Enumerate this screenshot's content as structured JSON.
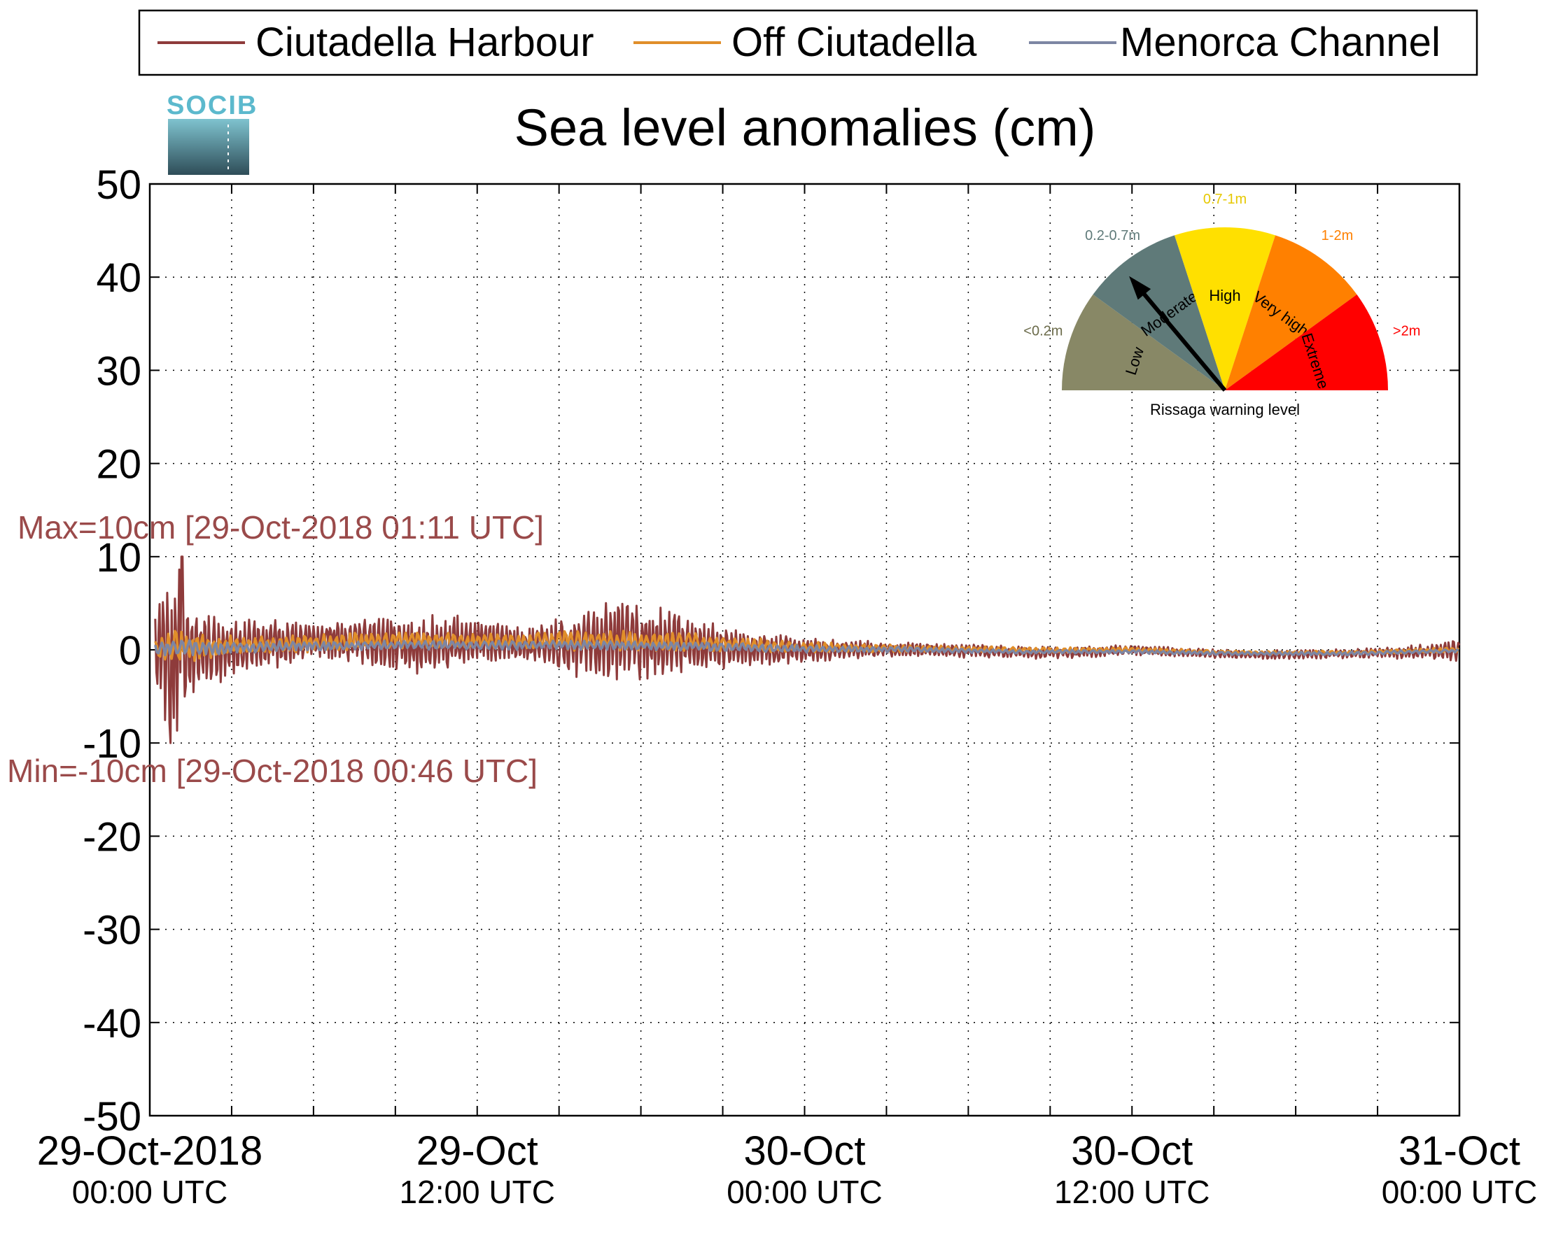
{
  "chart_data": {
    "type": "line",
    "title": "Sea level anomalies (cm)",
    "logo_text": "SOCIB",
    "xlabel": "",
    "ylabel": "",
    "ylim": [
      -50,
      50
    ],
    "yticks": [
      50,
      40,
      30,
      20,
      10,
      0,
      -10,
      -20,
      -30,
      -40,
      -50
    ],
    "xlim": [
      "2018-10-29T00:00Z",
      "2018-10-31T00:00Z"
    ],
    "xticks": [
      {
        "date": "29-Oct-2018",
        "time": "00:00 UTC"
      },
      {
        "date": "29-Oct",
        "time": "12:00 UTC"
      },
      {
        "date": "30-Oct",
        "time": "00:00 UTC"
      },
      {
        "date": "30-Oct",
        "time": "12:00 UTC"
      },
      {
        "date": "31-Oct",
        "time": "00:00 UTC"
      }
    ],
    "grid": true,
    "legend_placement": "top",
    "series": [
      {
        "name": "Ciutadella Harbour",
        "color": "#8e3b3b",
        "time_hours": [
          0,
          0.5,
          1.0,
          1.5,
          2,
          3,
          4,
          6,
          8,
          10,
          12,
          14,
          16,
          17,
          18,
          19,
          20,
          21,
          22,
          24,
          26,
          28,
          30,
          32,
          34,
          36,
          38,
          40,
          42,
          44,
          46,
          48
        ],
        "amplitude_cm": [
          3,
          8,
          10,
          6,
          4,
          3.5,
          3,
          2,
          3,
          3.5,
          2.5,
          2,
          4,
          5,
          4.5,
          4,
          3,
          2.5,
          2,
          1.5,
          1,
          0.8,
          0.8,
          0.7,
          0.6,
          0.6,
          0.5,
          0.5,
          0.5,
          0.5,
          0.7,
          1.2
        ],
        "baseline_cm": [
          0,
          0,
          0,
          0,
          0,
          0,
          0.5,
          1,
          1,
          0.5,
          1,
          0.5,
          0.5,
          1,
          1,
          0.8,
          0.5,
          0.3,
          0.1,
          0,
          0,
          0,
          -0.1,
          -0.3,
          -0.3,
          0,
          -0.3,
          -0.5,
          -0.5,
          -0.4,
          -0.3,
          0
        ]
      },
      {
        "name": "Off Ciutadella",
        "color": "#e08e2a",
        "time_hours": [
          0,
          1,
          2,
          4,
          8,
          12,
          16,
          20,
          24,
          28,
          32,
          36,
          40,
          44,
          48
        ],
        "amplitude_cm": [
          1,
          2,
          1.5,
          1,
          1,
          0.8,
          1.2,
          1,
          0.6,
          0.4,
          0.3,
          0.3,
          0.2,
          0.2,
          0.3
        ],
        "baseline_cm": [
          0,
          0.5,
          0.3,
          0.5,
          1,
          1,
          1,
          0.8,
          0.3,
          0.1,
          0,
          0,
          -0.3,
          -0.3,
          0
        ]
      },
      {
        "name": "Menorca Channel",
        "color": "#7d86a3",
        "time_hours": [
          0,
          1,
          2,
          4,
          8,
          12,
          16,
          20,
          24,
          28,
          32,
          36,
          40,
          44,
          48
        ],
        "amplitude_cm": [
          0.5,
          1,
          0.8,
          0.6,
          0.5,
          0.5,
          0.5,
          0.5,
          0.4,
          0.3,
          0.2,
          0.2,
          0.2,
          0.2,
          0.2
        ],
        "baseline_cm": [
          0,
          0.3,
          0.2,
          0.3,
          0.5,
          0.5,
          0.5,
          0.4,
          0.1,
          0,
          -0.2,
          -0.2,
          -0.4,
          -0.4,
          -0.1
        ]
      }
    ],
    "annotations": {
      "max_label": "Max=10cm [29-Oct-2018 01:11 UTC]",
      "min_label": "Min=-10cm [29-Oct-2018 00:46 UTC]",
      "max_value_cm": 10,
      "max_time_hours": 1.18,
      "min_value_cm": -10,
      "min_time_hours": 0.77
    },
    "gauge": {
      "caption": "Rissaga warning level",
      "needle_segment": "Moderate",
      "segments": [
        {
          "name": "Low",
          "range": "<0.2m",
          "color": "#888866"
        },
        {
          "name": "Moderate",
          "range": "0.2-0.7m",
          "color": "#5f7a79"
        },
        {
          "name": "High",
          "range": "0.7-1m",
          "color": "#ffe000"
        },
        {
          "name": "Very high",
          "range": "1-2m",
          "color": "#ff8000"
        },
        {
          "name": "Extreme",
          "range": ">2m",
          "color": "#ff0000"
        }
      ]
    }
  }
}
